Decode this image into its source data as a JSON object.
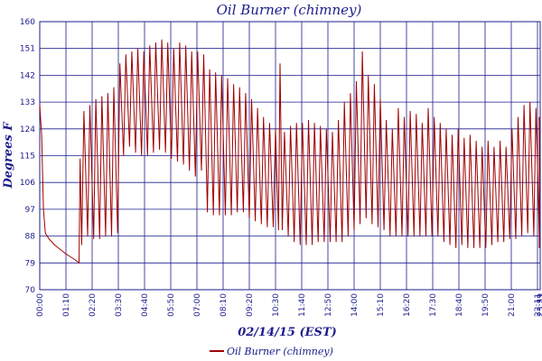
{
  "chart_data": {
    "type": "line",
    "title": "Oil Burner (chimney)",
    "xlabel": "02/14/15 (EST)",
    "ylabel": "Degrees F",
    "ylim": [
      70,
      160
    ],
    "yticks": [
      "160",
      "151",
      "142",
      "133",
      "124",
      "115",
      "106",
      "97",
      "88",
      "79",
      "70"
    ],
    "xticks": [
      "00:00",
      "01:10",
      "02:20",
      "03:30",
      "04:40",
      "05:50",
      "07:00",
      "08:10",
      "09:20",
      "10:30",
      "11:40",
      "12:50",
      "14:00",
      "15:10",
      "16:20",
      "17:30",
      "18:40",
      "19:50",
      "21:00",
      "22:11",
      "23:21",
      "23:59"
    ],
    "grid": true,
    "legend": "bottom",
    "series": [
      {
        "name": "Oil Burner (chimney)",
        "color": "#a00000",
        "points": [
          [
            0,
            132
          ],
          [
            5,
            122
          ],
          [
            10,
            97
          ],
          [
            15,
            89
          ],
          [
            25,
            87
          ],
          [
            40,
            85
          ],
          [
            70,
            82
          ],
          [
            95,
            80
          ],
          [
            105,
            79
          ],
          [
            108,
            114
          ],
          [
            112,
            85
          ],
          [
            118,
            130
          ],
          [
            128,
            88
          ],
          [
            134,
            132
          ],
          [
            144,
            87
          ],
          [
            150,
            134
          ],
          [
            160,
            87
          ],
          [
            166,
            135
          ],
          [
            176,
            88
          ],
          [
            182,
            136
          ],
          [
            192,
            88
          ],
          [
            198,
            138
          ],
          [
            208,
            89
          ],
          [
            214,
            146
          ],
          [
            224,
            115
          ],
          [
            230,
            149
          ],
          [
            240,
            118
          ],
          [
            246,
            150
          ],
          [
            256,
            116
          ],
          [
            262,
            151
          ],
          [
            272,
            115
          ],
          [
            278,
            150
          ],
          [
            288,
            115
          ],
          [
            294,
            152
          ],
          [
            304,
            116
          ],
          [
            310,
            153
          ],
          [
            320,
            117
          ],
          [
            326,
            154
          ],
          [
            336,
            116
          ],
          [
            342,
            153
          ],
          [
            352,
            114
          ],
          [
            358,
            151
          ],
          [
            368,
            113
          ],
          [
            374,
            153
          ],
          [
            384,
            112
          ],
          [
            390,
            152
          ],
          [
            400,
            110
          ],
          [
            406,
            150
          ],
          [
            416,
            108
          ],
          [
            422,
            150
          ],
          [
            432,
            110
          ],
          [
            438,
            149
          ],
          [
            448,
            96
          ],
          [
            454,
            144
          ],
          [
            464,
            95
          ],
          [
            470,
            143
          ],
          [
            480,
            95
          ],
          [
            486,
            142
          ],
          [
            496,
            95
          ],
          [
            502,
            141
          ],
          [
            512,
            95
          ],
          [
            518,
            139
          ],
          [
            528,
            96
          ],
          [
            534,
            138
          ],
          [
            544,
            96
          ],
          [
            550,
            136
          ],
          [
            560,
            94
          ],
          [
            566,
            134
          ],
          [
            576,
            93
          ],
          [
            582,
            131
          ],
          [
            592,
            92
          ],
          [
            598,
            128
          ],
          [
            608,
            91
          ],
          [
            614,
            126
          ],
          [
            624,
            91
          ],
          [
            630,
            124
          ],
          [
            638,
            90
          ],
          [
            642,
            146
          ],
          [
            648,
            90
          ],
          [
            654,
            123
          ],
          [
            664,
            88
          ],
          [
            670,
            125
          ],
          [
            680,
            86
          ],
          [
            686,
            126
          ],
          [
            696,
            85
          ],
          [
            702,
            126
          ],
          [
            712,
            85
          ],
          [
            718,
            127
          ],
          [
            728,
            85
          ],
          [
            734,
            126
          ],
          [
            744,
            86
          ],
          [
            750,
            125
          ],
          [
            760,
            86
          ],
          [
            766,
            124
          ],
          [
            776,
            86
          ],
          [
            782,
            123
          ],
          [
            792,
            86
          ],
          [
            798,
            127
          ],
          [
            808,
            86
          ],
          [
            814,
            133
          ],
          [
            824,
            88
          ],
          [
            830,
            136
          ],
          [
            840,
            90
          ],
          [
            846,
            140
          ],
          [
            856,
            92
          ],
          [
            862,
            150
          ],
          [
            872,
            94
          ],
          [
            878,
            142
          ],
          [
            888,
            92
          ],
          [
            894,
            139
          ],
          [
            904,
            91
          ],
          [
            910,
            134
          ],
          [
            920,
            90
          ],
          [
            926,
            127
          ],
          [
            936,
            88
          ],
          [
            942,
            124
          ],
          [
            952,
            88
          ],
          [
            958,
            131
          ],
          [
            968,
            88
          ],
          [
            974,
            128
          ],
          [
            984,
            88
          ],
          [
            990,
            130
          ],
          [
            1000,
            88
          ],
          [
            1006,
            129
          ],
          [
            1016,
            88
          ],
          [
            1022,
            126
          ],
          [
            1032,
            88
          ],
          [
            1038,
            131
          ],
          [
            1048,
            88
          ],
          [
            1054,
            128
          ],
          [
            1064,
            88
          ],
          [
            1070,
            126
          ],
          [
            1080,
            86
          ],
          [
            1086,
            124
          ],
          [
            1096,
            85
          ],
          [
            1102,
            122
          ],
          [
            1112,
            84
          ],
          [
            1118,
            124
          ],
          [
            1128,
            85
          ],
          [
            1134,
            121
          ],
          [
            1144,
            84
          ],
          [
            1150,
            122
          ],
          [
            1160,
            84
          ],
          [
            1166,
            120
          ],
          [
            1176,
            84
          ],
          [
            1182,
            118
          ],
          [
            1192,
            84
          ],
          [
            1198,
            120
          ],
          [
            1208,
            85
          ],
          [
            1214,
            118
          ],
          [
            1224,
            86
          ],
          [
            1230,
            120
          ],
          [
            1240,
            86
          ],
          [
            1246,
            118
          ],
          [
            1256,
            87
          ],
          [
            1262,
            124
          ],
          [
            1272,
            87
          ],
          [
            1278,
            128
          ],
          [
            1288,
            88
          ],
          [
            1294,
            132
          ],
          [
            1304,
            89
          ],
          [
            1310,
            133
          ],
          [
            1320,
            88
          ],
          [
            1326,
            131
          ],
          [
            1336,
            88
          ],
          [
            1342,
            128
          ],
          [
            1352,
            88
          ],
          [
            1358,
            125
          ],
          [
            1368,
            88
          ],
          [
            1374,
            124
          ],
          [
            1384,
            88
          ],
          [
            1390,
            118
          ],
          [
            1400,
            86
          ],
          [
            1406,
            124
          ],
          [
            1416,
            88
          ],
          [
            1422,
            120
          ],
          [
            1430,
            88
          ],
          [
            1436,
            88
          ],
          [
            1439,
            84
          ]
        ]
      }
    ]
  }
}
